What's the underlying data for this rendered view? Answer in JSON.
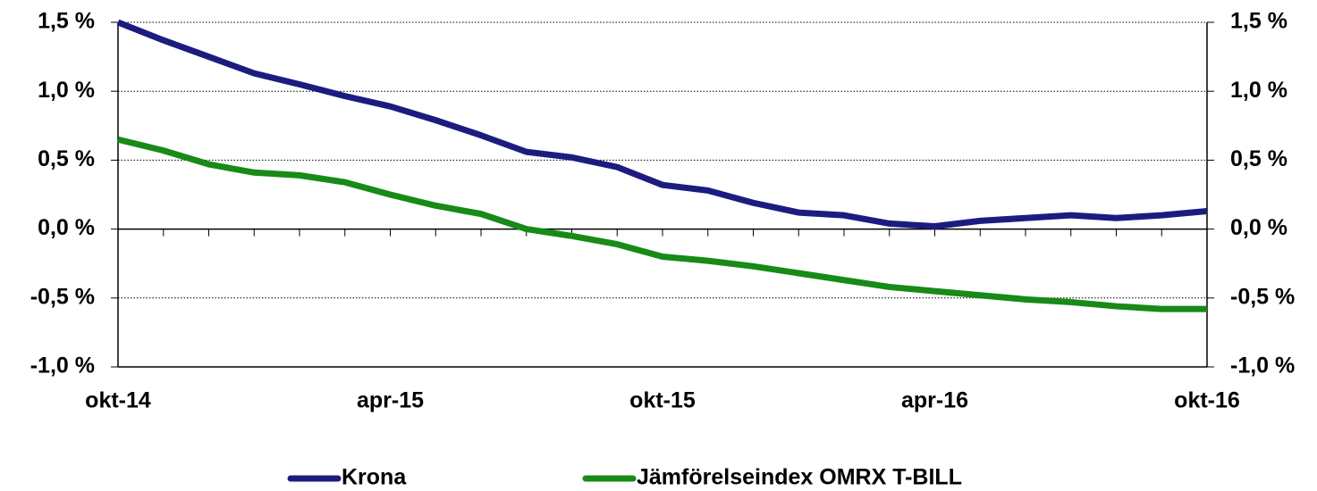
{
  "chart_data": {
    "type": "line",
    "categories": [
      "okt-14",
      null,
      null,
      null,
      null,
      null,
      "apr-15",
      null,
      null,
      null,
      null,
      null,
      "okt-15",
      null,
      null,
      null,
      null,
      null,
      "apr-16",
      null,
      null,
      null,
      null,
      null,
      "okt-16"
    ],
    "series": [
      {
        "name": "Krona",
        "color": "#1c1c80",
        "values": [
          1.5,
          1.37,
          1.25,
          1.13,
          1.05,
          0.965,
          0.89,
          0.79,
          0.68,
          0.56,
          0.52,
          0.45,
          0.32,
          0.28,
          0.19,
          0.12,
          0.1,
          0.04,
          0.02,
          0.06,
          0.08,
          0.1,
          0.08,
          0.1,
          0.13
        ]
      },
      {
        "name": "Jämförelseindex OMRX T-BILL",
        "color": "#178a17",
        "values": [
          0.65,
          0.57,
          0.47,
          0.41,
          0.39,
          0.34,
          0.25,
          0.17,
          0.11,
          0.0,
          -0.05,
          -0.11,
          -0.2,
          -0.23,
          -0.27,
          -0.32,
          -0.37,
          -0.42,
          -0.45,
          -0.48,
          -0.51,
          -0.53,
          -0.56,
          -0.58,
          -0.58
        ]
      }
    ],
    "ylim": [
      -1.0,
      1.5
    ],
    "yticks": [
      {
        "value": -1.0,
        "label": "-1,0 %"
      },
      {
        "value": -0.5,
        "label": "-0,5 %"
      },
      {
        "value": 0,
        "label": "0,0 %"
      },
      {
        "value": 0.5,
        "label": "0,5 %"
      },
      {
        "value": 1.0,
        "label": "1,0 %"
      },
      {
        "value": 1.5,
        "label": "1,5 %"
      }
    ],
    "y2lim": [
      -1.0,
      1.5
    ],
    "y2ticks": [
      {
        "value": -1.0,
        "label": "-1,0 %"
      },
      {
        "value": -0.5,
        "label": "-0,5 %"
      },
      {
        "value": 0,
        "label": "0,0 %"
      },
      {
        "value": 0.5,
        "label": "0,5 %"
      },
      {
        "value": 1.0,
        "label": "1,0 %"
      },
      {
        "value": 1.5,
        "label": "1,5 %"
      }
    ],
    "grid": true,
    "legend": "bottom"
  }
}
